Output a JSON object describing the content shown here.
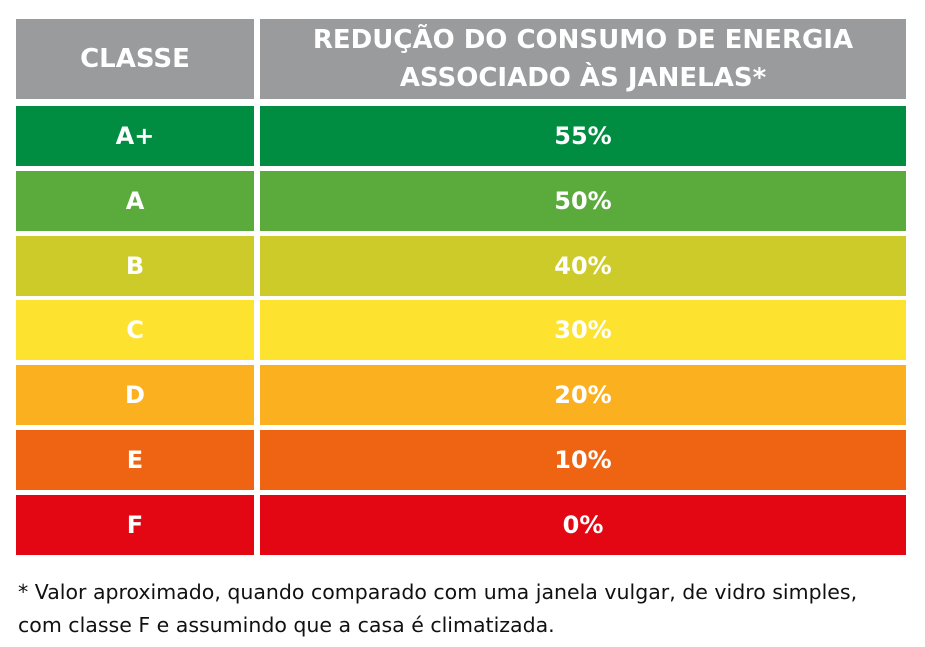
{
  "table": {
    "header": {
      "col1": "CLASSE",
      "col2_line1": "REDUÇÃO DO CONSUMO DE ENERGIA",
      "col2_line2": "ASSOCIADO ÀS JANELAS*"
    },
    "rows": [
      {
        "class": "A+",
        "value": "55%",
        "color": "#008c41"
      },
      {
        "class": "A",
        "value": "50%",
        "color": "#5aab3b"
      },
      {
        "class": "B",
        "value": "40%",
        "color": "#cdcb2a"
      },
      {
        "class": "C",
        "value": "30%",
        "color": "#fde330"
      },
      {
        "class": "D",
        "value": "20%",
        "color": "#fbb11f"
      },
      {
        "class": "E",
        "value": "10%",
        "color": "#ef6413"
      },
      {
        "class": "F",
        "value": "0%",
        "color": "#e30613"
      }
    ],
    "header_color": "#9a9b9c"
  },
  "footnote": {
    "line1": "* Valor aproximado, quando comparado com uma janela vulgar, de vidro simples,",
    "line2": "com classe F e assumindo que a casa é climatizada."
  }
}
